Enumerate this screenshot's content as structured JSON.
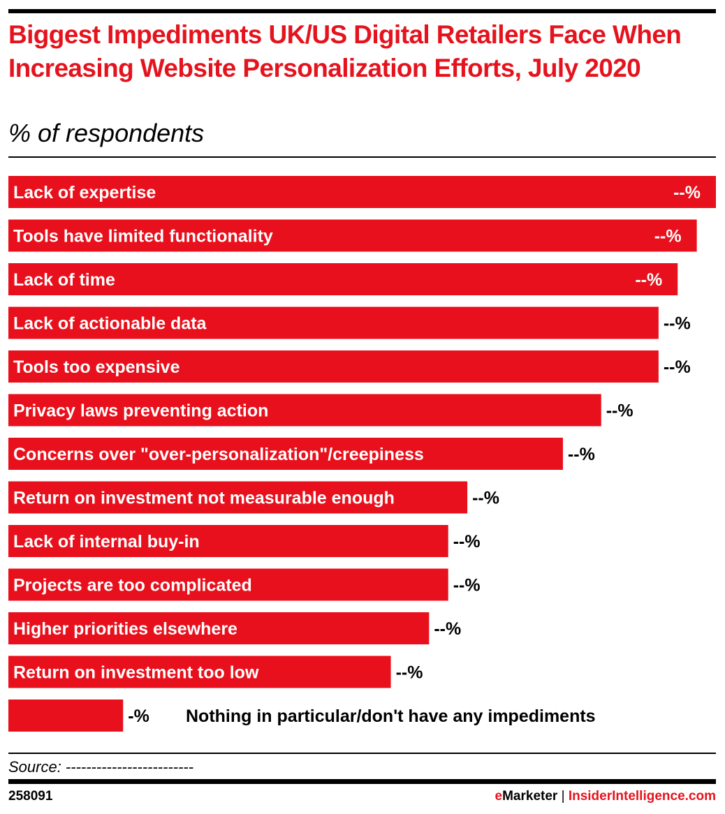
{
  "chart_data": {
    "type": "bar",
    "orientation": "horizontal",
    "title": "Biggest Impediments UK/US Digital Retailers Face When Increasing Website Personalization Efforts, July 2020",
    "subtitle": "% of respondents",
    "categories": [
      "Lack of expertise",
      "Tools have limited functionality",
      "Lack of time",
      "Lack of actionable data",
      "Tools too expensive",
      "Privacy laws preventing action",
      "Concerns over \"over-personalization\"/creepiness",
      "Return on investment not measurable enough",
      "Lack of internal buy-in",
      "Projects are too complicated",
      "Higher priorities elsewhere",
      "Return on investment too low",
      "Nothing in particular/don't have any impediments"
    ],
    "values": [
      37,
      36,
      35,
      34,
      34,
      31,
      29,
      24,
      23,
      23,
      22,
      20,
      6
    ],
    "value_labels": [
      "--%",
      "--%",
      "--%",
      "--%",
      "--%",
      "--%",
      "--%",
      "--%",
      "--%",
      "--%",
      "--%",
      "--%",
      "-%"
    ],
    "xlim": [
      0,
      37
    ],
    "grid": false,
    "bar_color": "#e8101c"
  },
  "source": "Source: -------------------------",
  "footer": {
    "id": "258091",
    "brand_e": "e",
    "brand_rest": "Marketer",
    "separator": "|",
    "site": "InsiderIntelligence.com"
  }
}
